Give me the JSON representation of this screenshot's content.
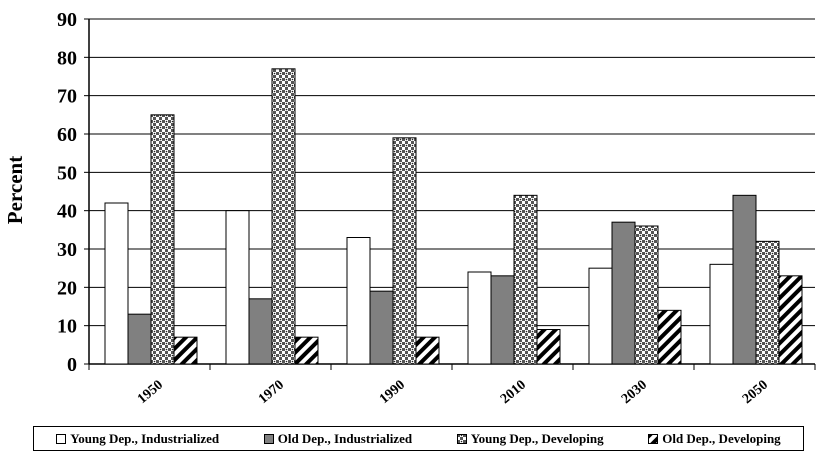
{
  "chart_data": {
    "type": "bar",
    "title": "",
    "xlabel": "",
    "ylabel": "Percent",
    "ylim": [
      0,
      90
    ],
    "yticks": [
      "0",
      "10",
      "20",
      "30",
      "40",
      "50",
      "60",
      "70",
      "80",
      "90"
    ],
    "categories": [
      "1950",
      "1970",
      "1990",
      "2010",
      "2030",
      "2050"
    ],
    "series": [
      {
        "name": "Young Dep., Industrialized",
        "pattern": "white",
        "values": [
          42,
          40,
          33,
          24,
          25,
          26
        ]
      },
      {
        "name": "Old Dep., Industrialized",
        "pattern": "gray",
        "values": [
          13,
          17,
          19,
          23,
          37,
          44
        ]
      },
      {
        "name": "Young Dep., Developing",
        "pattern": "checker",
        "values": [
          65,
          77,
          59,
          44,
          36,
          32
        ]
      },
      {
        "name": "Old Dep., Developing",
        "pattern": "diagonal",
        "values": [
          7,
          7,
          7,
          9,
          14,
          23
        ]
      }
    ],
    "grid": true,
    "legend_position": "bottom"
  },
  "colors": {
    "gray_fill": "#808080",
    "line": "#000000"
  }
}
